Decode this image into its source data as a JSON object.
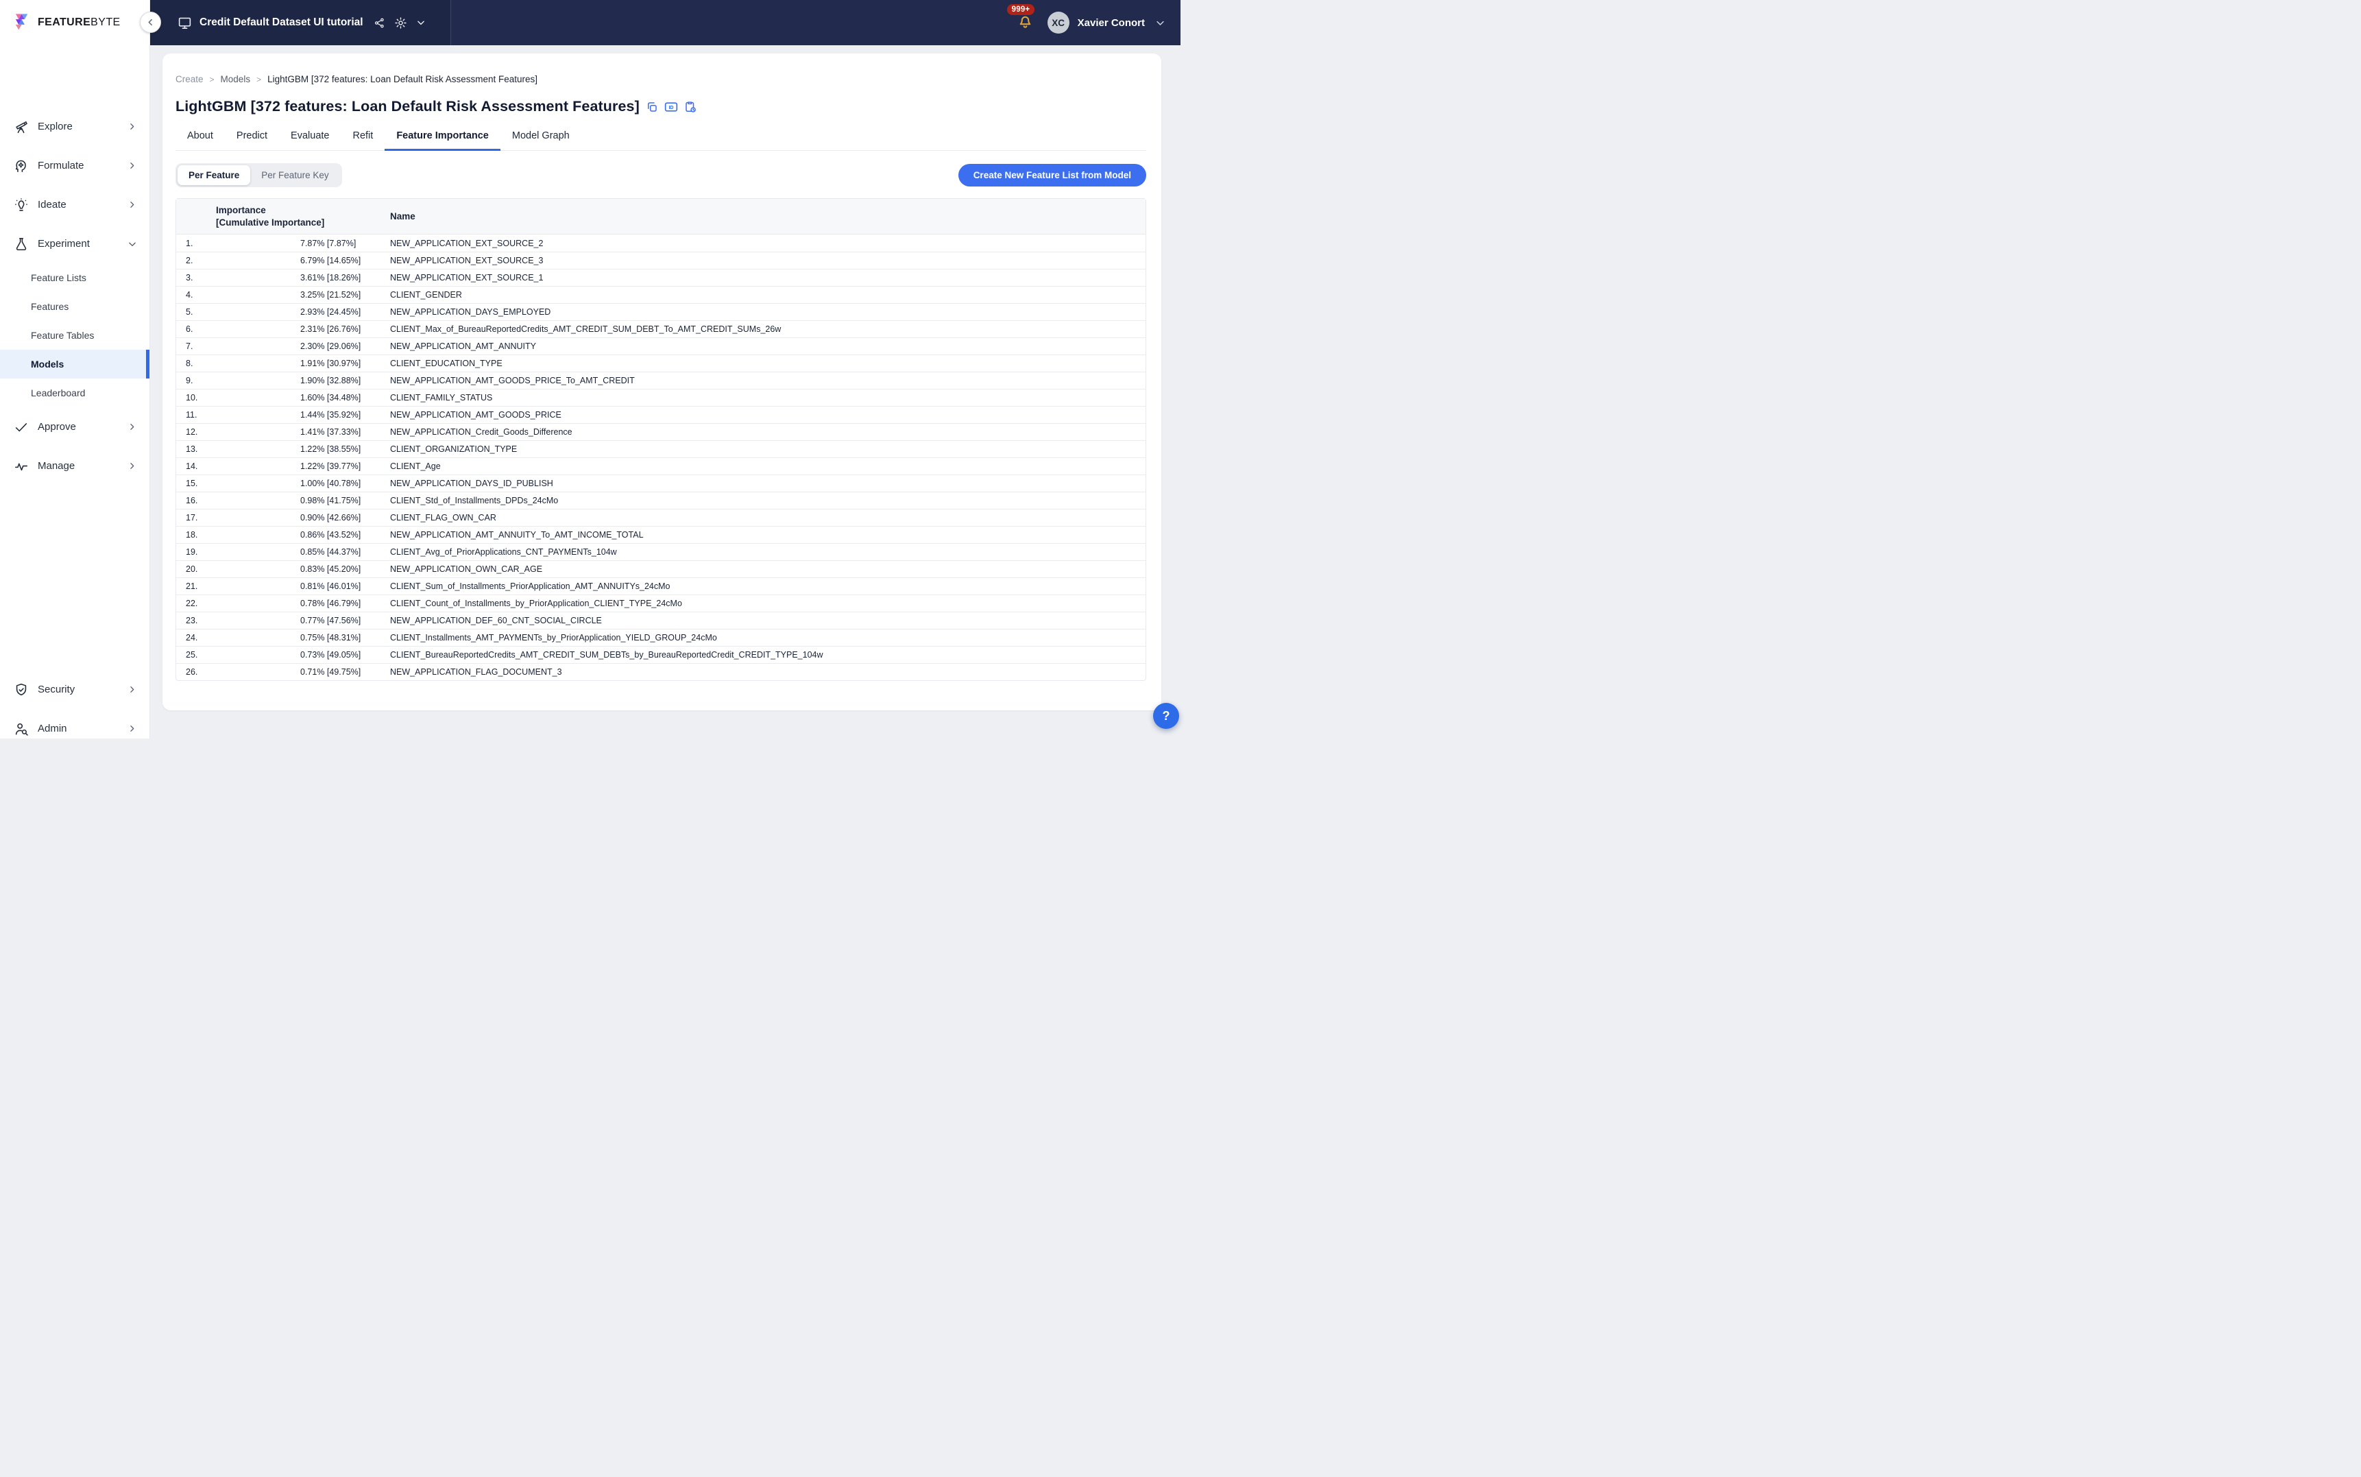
{
  "brand": {
    "word_bold": "FEATURE",
    "word_light": "BYTE"
  },
  "topbar": {
    "project_label": "Credit Default Dataset UI tutorial",
    "notifications_badge": "999+",
    "user_initials": "XC",
    "user_name": "Xavier Conort"
  },
  "sidebar": {
    "items": [
      {
        "label": "Explore",
        "icon": "telescope",
        "chevron": "right"
      },
      {
        "label": "Formulate",
        "icon": "head-gear",
        "chevron": "right"
      },
      {
        "label": "Ideate",
        "icon": "lightbulb",
        "chevron": "right"
      },
      {
        "label": "Experiment",
        "icon": "flask",
        "chevron": "down",
        "children": [
          {
            "label": "Feature Lists",
            "active": false
          },
          {
            "label": "Features",
            "active": false
          },
          {
            "label": "Feature Tables",
            "active": false
          },
          {
            "label": "Models",
            "active": true
          },
          {
            "label": "Leaderboard",
            "active": false
          }
        ]
      },
      {
        "label": "Approve",
        "icon": "check",
        "chevron": "right"
      },
      {
        "label": "Manage",
        "icon": "pulse",
        "chevron": "right"
      }
    ],
    "bottom_items": [
      {
        "label": "Security",
        "icon": "shield-check",
        "chevron": "right"
      },
      {
        "label": "Admin",
        "icon": "user-search",
        "chevron": "right"
      }
    ]
  },
  "breadcrumb": {
    "separator": ">",
    "items": [
      "Create",
      "Models",
      "LightGBM [372 features: Loan Default Risk Assessment Features]"
    ]
  },
  "page": {
    "title": "LightGBM [372 features: Loan Default Risk Assessment Features]"
  },
  "tabs": [
    {
      "label": "About",
      "active": false
    },
    {
      "label": "Predict",
      "active": false
    },
    {
      "label": "Evaluate",
      "active": false
    },
    {
      "label": "Refit",
      "active": false
    },
    {
      "label": "Feature Importance",
      "active": true
    },
    {
      "label": "Model Graph",
      "active": false
    }
  ],
  "view_toggle": [
    {
      "label": "Per Feature",
      "active": true
    },
    {
      "label": "Per Feature Key",
      "active": false
    }
  ],
  "actions": {
    "create_feature_list": "Create New Feature List from Model"
  },
  "table": {
    "header": {
      "importance_line1": "Importance",
      "importance_line2": "[Cumulative Importance]",
      "name": "Name"
    },
    "max_importance": 7.87,
    "rows": [
      {
        "rank": "1.",
        "importance": 7.87,
        "label": "7.87% [7.87%]",
        "name": "NEW_APPLICATION_EXT_SOURCE_2"
      },
      {
        "rank": "2.",
        "importance": 6.79,
        "label": "6.79% [14.65%]",
        "name": "NEW_APPLICATION_EXT_SOURCE_3"
      },
      {
        "rank": "3.",
        "importance": 3.61,
        "label": "3.61% [18.26%]",
        "name": "NEW_APPLICATION_EXT_SOURCE_1"
      },
      {
        "rank": "4.",
        "importance": 3.25,
        "label": "3.25% [21.52%]",
        "name": "CLIENT_GENDER"
      },
      {
        "rank": "5.",
        "importance": 2.93,
        "label": "2.93% [24.45%]",
        "name": "NEW_APPLICATION_DAYS_EMPLOYED"
      },
      {
        "rank": "6.",
        "importance": 2.31,
        "label": "2.31% [26.76%]",
        "name": "CLIENT_Max_of_BureauReportedCredits_AMT_CREDIT_SUM_DEBT_To_AMT_CREDIT_SUMs_26w"
      },
      {
        "rank": "7.",
        "importance": 2.3,
        "label": "2.30% [29.06%]",
        "name": "NEW_APPLICATION_AMT_ANNUITY"
      },
      {
        "rank": "8.",
        "importance": 1.91,
        "label": "1.91% [30.97%]",
        "name": "CLIENT_EDUCATION_TYPE"
      },
      {
        "rank": "9.",
        "importance": 1.9,
        "label": "1.90% [32.88%]",
        "name": "NEW_APPLICATION_AMT_GOODS_PRICE_To_AMT_CREDIT"
      },
      {
        "rank": "10.",
        "importance": 1.6,
        "label": "1.60% [34.48%]",
        "name": "CLIENT_FAMILY_STATUS"
      },
      {
        "rank": "11.",
        "importance": 1.44,
        "label": "1.44% [35.92%]",
        "name": "NEW_APPLICATION_AMT_GOODS_PRICE"
      },
      {
        "rank": "12.",
        "importance": 1.41,
        "label": "1.41% [37.33%]",
        "name": "NEW_APPLICATION_Credit_Goods_Difference"
      },
      {
        "rank": "13.",
        "importance": 1.22,
        "label": "1.22% [38.55%]",
        "name": "CLIENT_ORGANIZATION_TYPE"
      },
      {
        "rank": "14.",
        "importance": 1.22,
        "label": "1.22% [39.77%]",
        "name": "CLIENT_Age"
      },
      {
        "rank": "15.",
        "importance": 1.0,
        "label": "1.00% [40.78%]",
        "name": "NEW_APPLICATION_DAYS_ID_PUBLISH"
      },
      {
        "rank": "16.",
        "importance": 0.98,
        "label": "0.98% [41.75%]",
        "name": "CLIENT_Std_of_Installments_DPDs_24cMo"
      },
      {
        "rank": "17.",
        "importance": 0.9,
        "label": "0.90% [42.66%]",
        "name": "CLIENT_FLAG_OWN_CAR"
      },
      {
        "rank": "18.",
        "importance": 0.86,
        "label": "0.86% [43.52%]",
        "name": "NEW_APPLICATION_AMT_ANNUITY_To_AMT_INCOME_TOTAL"
      },
      {
        "rank": "19.",
        "importance": 0.85,
        "label": "0.85% [44.37%]",
        "name": "CLIENT_Avg_of_PriorApplications_CNT_PAYMENTs_104w"
      },
      {
        "rank": "20.",
        "importance": 0.83,
        "label": "0.83% [45.20%]",
        "name": "NEW_APPLICATION_OWN_CAR_AGE"
      },
      {
        "rank": "21.",
        "importance": 0.81,
        "label": "0.81% [46.01%]",
        "name": "CLIENT_Sum_of_Installments_PriorApplication_AMT_ANNUITYs_24cMo"
      },
      {
        "rank": "22.",
        "importance": 0.78,
        "label": "0.78% [46.79%]",
        "name": "CLIENT_Count_of_Installments_by_PriorApplication_CLIENT_TYPE_24cMo"
      },
      {
        "rank": "23.",
        "importance": 0.77,
        "label": "0.77% [47.56%]",
        "name": "NEW_APPLICATION_DEF_60_CNT_SOCIAL_CIRCLE"
      },
      {
        "rank": "24.",
        "importance": 0.75,
        "label": "0.75% [48.31%]",
        "name": "CLIENT_Installments_AMT_PAYMENTs_by_PriorApplication_YIELD_GROUP_24cMo"
      },
      {
        "rank": "25.",
        "importance": 0.73,
        "label": "0.73% [49.05%]",
        "name": "CLIENT_BureauReportedCredits_AMT_CREDIT_SUM_DEBTs_by_BureauReportedCredit_CREDIT_TYPE_104w"
      },
      {
        "rank": "26.",
        "importance": 0.71,
        "label": "0.71% [49.75%]",
        "name": "NEW_APPLICATION_FLAG_DOCUMENT_3"
      }
    ]
  },
  "help": {
    "label": "?"
  },
  "colors": {
    "accent": "#2e6be8",
    "bar_fill": "#3b74ef",
    "bar_track": "#e7e9ed",
    "topbar_bg": "#1d2644",
    "badge_red": "#b02318",
    "bell_amber": "#e0a33a",
    "active_item_bg": "#e8f1fc",
    "button_blue": "#3c6ef0"
  }
}
